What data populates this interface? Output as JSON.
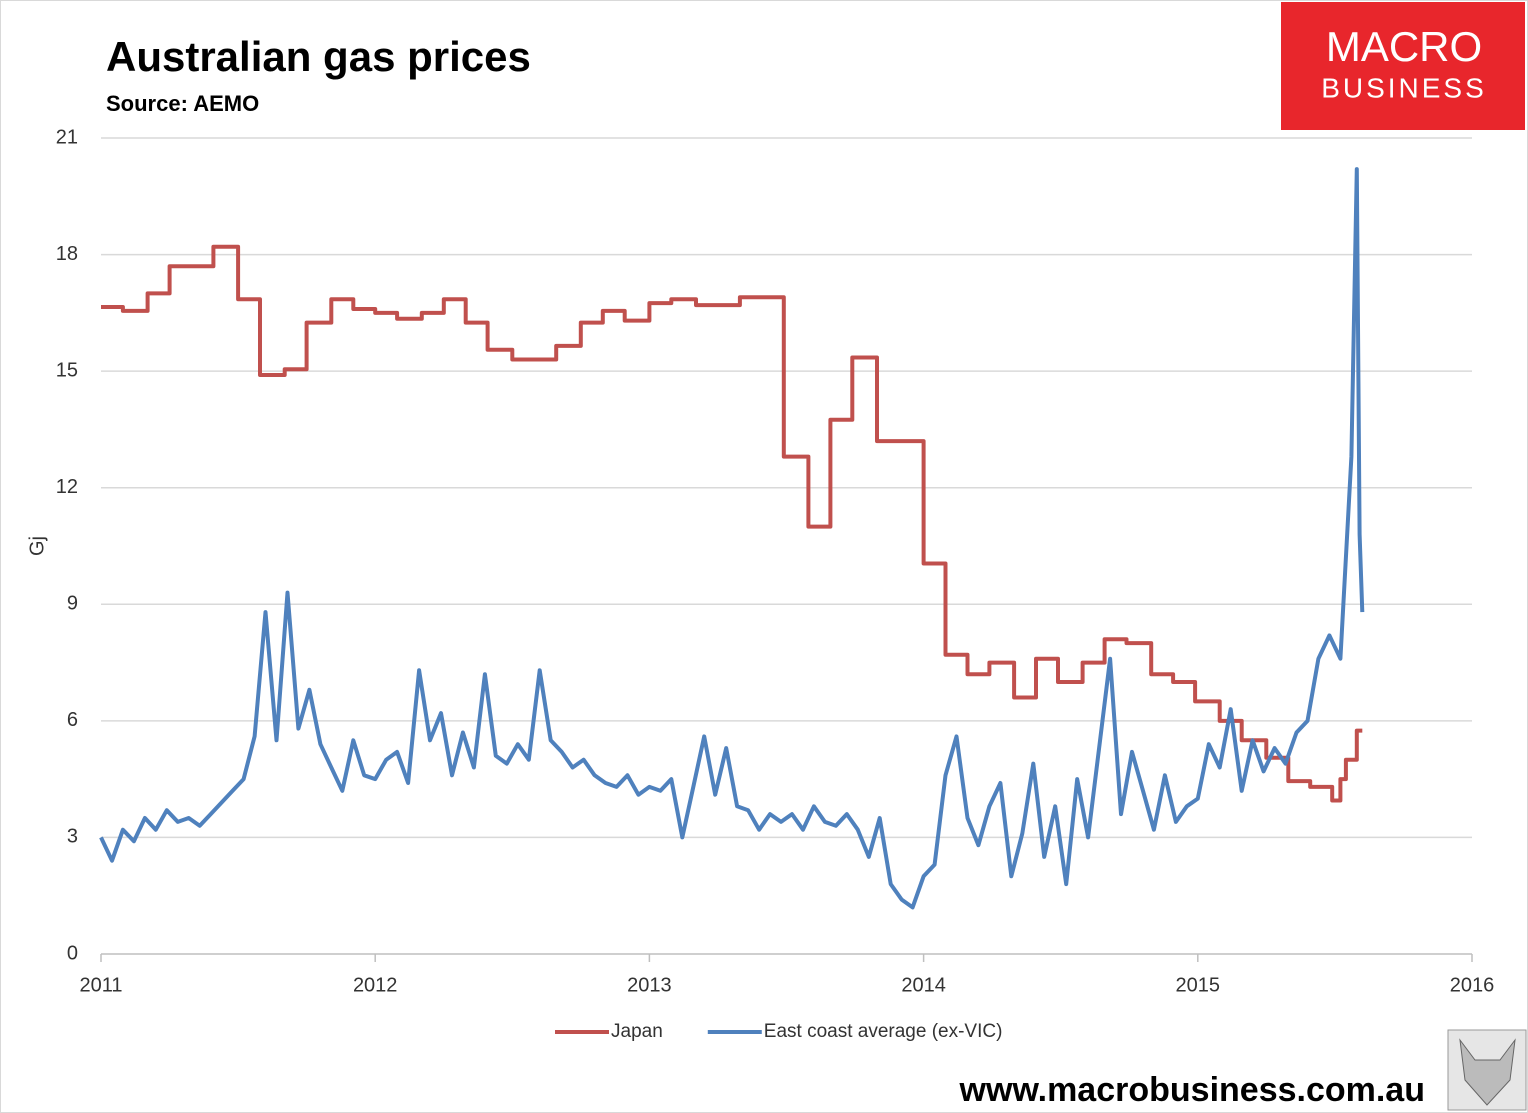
{
  "chart_data": {
    "type": "line",
    "title": "Australian gas prices",
    "subtitle": "Source: AEMO",
    "y_label": "Gj",
    "logo": [
      "MACRO",
      "BUSINESS"
    ],
    "footer": "www.macrobusiness.com.au",
    "xlim": [
      2011,
      2016
    ],
    "xticks": [
      2011,
      2012,
      2013,
      2014,
      2015,
      2016
    ],
    "ylim": [
      0,
      21
    ],
    "yticks": [
      0,
      3,
      6,
      9,
      12,
      15,
      18,
      21
    ],
    "grid": true,
    "legend": "bottom",
    "series": [
      {
        "name": "Japan",
        "color": "#c0504d",
        "x": [
          2011.0,
          2011.08,
          2011.08,
          2011.17,
          2011.17,
          2011.25,
          2011.25,
          2011.41,
          2011.41,
          2011.5,
          2011.5,
          2011.58,
          2011.58,
          2011.67,
          2011.67,
          2011.75,
          2011.75,
          2011.84,
          2011.84,
          2011.92,
          2011.92,
          2012.0,
          2012.0,
          2012.08,
          2012.08,
          2012.17,
          2012.17,
          2012.25,
          2012.25,
          2012.33,
          2012.33,
          2012.41,
          2012.41,
          2012.5,
          2012.5,
          2012.66,
          2012.66,
          2012.75,
          2012.75,
          2012.83,
          2012.83,
          2012.91,
          2012.91,
          2013.0,
          2013.0,
          2013.08,
          2013.08,
          2013.17,
          2013.17,
          2013.33,
          2013.33,
          2013.49,
          2013.49,
          2013.58,
          2013.58,
          2013.66,
          2013.66,
          2013.74,
          2013.74,
          2013.83,
          2013.83,
          2014.0,
          2014.0,
          2014.08,
          2014.08,
          2014.16,
          2014.16,
          2014.24,
          2014.24,
          2014.33,
          2014.33,
          2014.41,
          2014.41,
          2014.49,
          2014.49,
          2014.58,
          2014.58,
          2014.66,
          2014.66,
          2014.74,
          2014.74,
          2014.83,
          2014.83,
          2014.91,
          2014.91,
          2014.99,
          2014.99,
          2015.08,
          2015.08,
          2015.16,
          2015.16,
          2015.25,
          2015.25,
          2015.33,
          2015.33,
          2015.41,
          2015.41,
          2015.49,
          2015.49,
          2015.52,
          2015.52,
          2015.54,
          2015.54,
          2015.58,
          2015.58,
          2015.6
        ],
        "values": [
          16.65,
          16.65,
          16.55,
          16.55,
          17.0,
          17.0,
          17.7,
          17.7,
          18.2,
          18.2,
          16.85,
          16.85,
          14.9,
          14.9,
          15.05,
          15.05,
          16.25,
          16.25,
          16.85,
          16.85,
          16.6,
          16.6,
          16.5,
          16.5,
          16.35,
          16.35,
          16.5,
          16.5,
          16.85,
          16.85,
          16.25,
          16.25,
          15.55,
          15.55,
          15.3,
          15.3,
          15.65,
          15.65,
          16.25,
          16.25,
          16.55,
          16.55,
          16.3,
          16.3,
          16.75,
          16.75,
          16.85,
          16.85,
          16.7,
          16.7,
          16.9,
          16.9,
          12.8,
          12.8,
          11.0,
          11.0,
          13.75,
          13.75,
          15.35,
          15.35,
          13.2,
          13.2,
          10.05,
          10.05,
          7.7,
          7.7,
          7.2,
          7.2,
          7.5,
          7.5,
          6.6,
          6.6,
          7.6,
          7.6,
          7.0,
          7.0,
          7.5,
          7.5,
          8.1,
          8.1,
          8.0,
          8.0,
          7.2,
          7.2,
          7.0,
          7.0,
          6.5,
          6.5,
          6.0,
          6.0,
          5.5,
          5.5,
          5.05,
          5.05,
          4.45,
          4.45,
          4.3,
          4.3,
          3.95,
          3.95,
          4.5,
          4.5,
          5.0,
          5.0,
          5.75,
          5.75
        ]
      },
      {
        "name": "East coast average (ex-VIC)",
        "color": "#4f81bd",
        "x": [
          2011.0,
          2011.04,
          2011.08,
          2011.12,
          2011.16,
          2011.2,
          2011.24,
          2011.28,
          2011.32,
          2011.36,
          2011.4,
          2011.44,
          2011.48,
          2011.52,
          2011.56,
          2011.6,
          2011.64,
          2011.68,
          2011.72,
          2011.76,
          2011.8,
          2011.84,
          2011.88,
          2011.92,
          2011.96,
          2012.0,
          2012.04,
          2012.08,
          2012.12,
          2012.16,
          2012.2,
          2012.24,
          2012.28,
          2012.32,
          2012.36,
          2012.4,
          2012.44,
          2012.48,
          2012.52,
          2012.56,
          2012.6,
          2012.64,
          2012.68,
          2012.72,
          2012.76,
          2012.8,
          2012.84,
          2012.88,
          2012.92,
          2012.96,
          2013.0,
          2013.04,
          2013.08,
          2013.12,
          2013.16,
          2013.2,
          2013.24,
          2013.28,
          2013.32,
          2013.36,
          2013.4,
          2013.44,
          2013.48,
          2013.52,
          2013.56,
          2013.6,
          2013.64,
          2013.68,
          2013.72,
          2013.76,
          2013.8,
          2013.84,
          2013.88,
          2013.92,
          2013.96,
          2014.0,
          2014.04,
          2014.08,
          2014.12,
          2014.16,
          2014.2,
          2014.24,
          2014.28,
          2014.32,
          2014.36,
          2014.4,
          2014.44,
          2014.48,
          2014.52,
          2014.56,
          2014.6,
          2014.64,
          2014.68,
          2014.72,
          2014.76,
          2014.8,
          2014.84,
          2014.88,
          2014.92,
          2014.96,
          2015.0,
          2015.04,
          2015.08,
          2015.12,
          2015.16,
          2015.2,
          2015.24,
          2015.28,
          2015.32,
          2015.36,
          2015.4,
          2015.44,
          2015.48,
          2015.52,
          2015.56,
          2015.58,
          2015.59,
          2015.6
        ],
        "values": [
          3.0,
          2.4,
          3.2,
          2.9,
          3.5,
          3.2,
          3.7,
          3.4,
          3.5,
          3.3,
          3.6,
          3.9,
          4.2,
          4.5,
          5.6,
          8.8,
          5.5,
          9.3,
          5.8,
          6.8,
          5.4,
          4.8,
          4.2,
          5.5,
          4.6,
          4.5,
          5.0,
          5.2,
          4.4,
          7.3,
          5.5,
          6.2,
          4.6,
          5.7,
          4.8,
          7.2,
          5.1,
          4.9,
          5.4,
          5.0,
          7.3,
          5.5,
          5.2,
          4.8,
          5.0,
          4.6,
          4.4,
          4.3,
          4.6,
          4.1,
          4.3,
          4.2,
          4.5,
          3.0,
          4.3,
          5.6,
          4.1,
          5.3,
          3.8,
          3.7,
          3.2,
          3.6,
          3.4,
          3.6,
          3.2,
          3.8,
          3.4,
          3.3,
          3.6,
          3.2,
          2.5,
          3.5,
          1.8,
          1.4,
          1.2,
          2.0,
          2.3,
          4.6,
          5.6,
          3.5,
          2.8,
          3.8,
          4.4,
          2.0,
          3.1,
          4.9,
          2.5,
          3.8,
          1.8,
          4.5,
          3.0,
          5.3,
          7.6,
          3.6,
          5.2,
          4.2,
          3.2,
          4.6,
          3.4,
          3.8,
          4.0,
          5.4,
          4.8,
          6.3,
          4.2,
          5.5,
          4.7,
          5.3,
          4.9,
          5.7,
          6.0,
          7.6,
          8.2,
          7.6,
          12.8,
          20.2,
          10.8,
          8.8
        ]
      }
    ]
  }
}
